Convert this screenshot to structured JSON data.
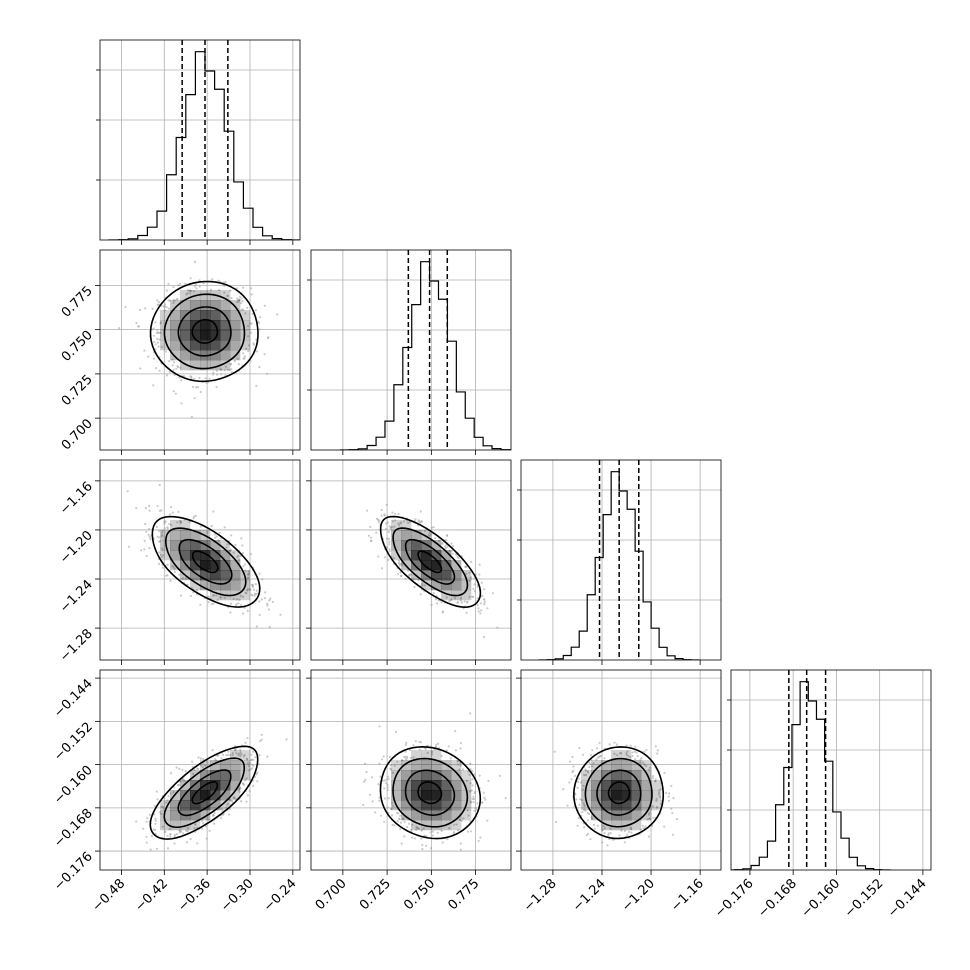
{
  "chart_data": {
    "type": "corner",
    "title": "",
    "parameters": [
      {
        "index": 0,
        "range": [
          -0.51,
          -0.23
        ],
        "ticks": [
          -0.48,
          -0.42,
          -0.36,
          -0.3,
          -0.24
        ],
        "tick_labels": [
          "−0.48",
          "−0.42",
          "−0.36",
          "−0.30",
          "−0.24"
        ],
        "mean": -0.363,
        "sigma": 0.032,
        "quantiles": [
          -0.395,
          -0.363,
          -0.331
        ]
      },
      {
        "index": 1,
        "range": [
          0.682,
          0.795
        ],
        "ticks": [
          0.7,
          0.725,
          0.75,
          0.775
        ],
        "tick_labels": [
          "0.700",
          "0.725",
          "0.750",
          "0.775"
        ],
        "mean": 0.749,
        "sigma": 0.012,
        "quantiles": [
          0.737,
          0.749,
          0.759
        ]
      },
      {
        "index": 2,
        "range": [
          -1.306,
          -1.143
        ],
        "ticks": [
          -1.28,
          -1.24,
          -1.2,
          -1.16
        ],
        "tick_labels": [
          "−1.28",
          "−1.24",
          "−1.20",
          "−1.16"
        ],
        "mean": -1.226,
        "sigma": 0.0155,
        "quantiles": [
          -1.242,
          -1.226,
          -1.21
        ]
      },
      {
        "index": 3,
        "range": [
          -0.1795,
          -0.1425
        ],
        "ticks": [
          -0.176,
          -0.168,
          -0.16,
          -0.152,
          -0.144
        ],
        "tick_labels": [
          "−0.176",
          "−0.168",
          "−0.160",
          "−0.152",
          "−0.144"
        ],
        "mean": -0.1652,
        "sigma": 0.0036,
        "quantiles": [
          -0.1688,
          -0.1655,
          -0.162
        ]
      }
    ],
    "correlations": [
      {
        "x": 0,
        "y": 1,
        "rho": 0.0
      },
      {
        "x": 0,
        "y": 2,
        "rho": -0.6
      },
      {
        "x": 1,
        "y": 2,
        "rho": -0.7
      },
      {
        "x": 0,
        "y": 3,
        "rho": 0.7
      },
      {
        "x": 1,
        "y": 3,
        "rho": -0.1
      },
      {
        "x": 2,
        "y": 3,
        "rho": 0.0
      }
    ],
    "hist_bins": 20,
    "contour_levels_sigma": [
      0.5,
      1.0,
      1.5,
      2.0
    ],
    "grid": true,
    "colors": {
      "line": "#000000",
      "grid": "#b0b0b0",
      "points": "#9e9e9e",
      "density": "#000000"
    }
  }
}
